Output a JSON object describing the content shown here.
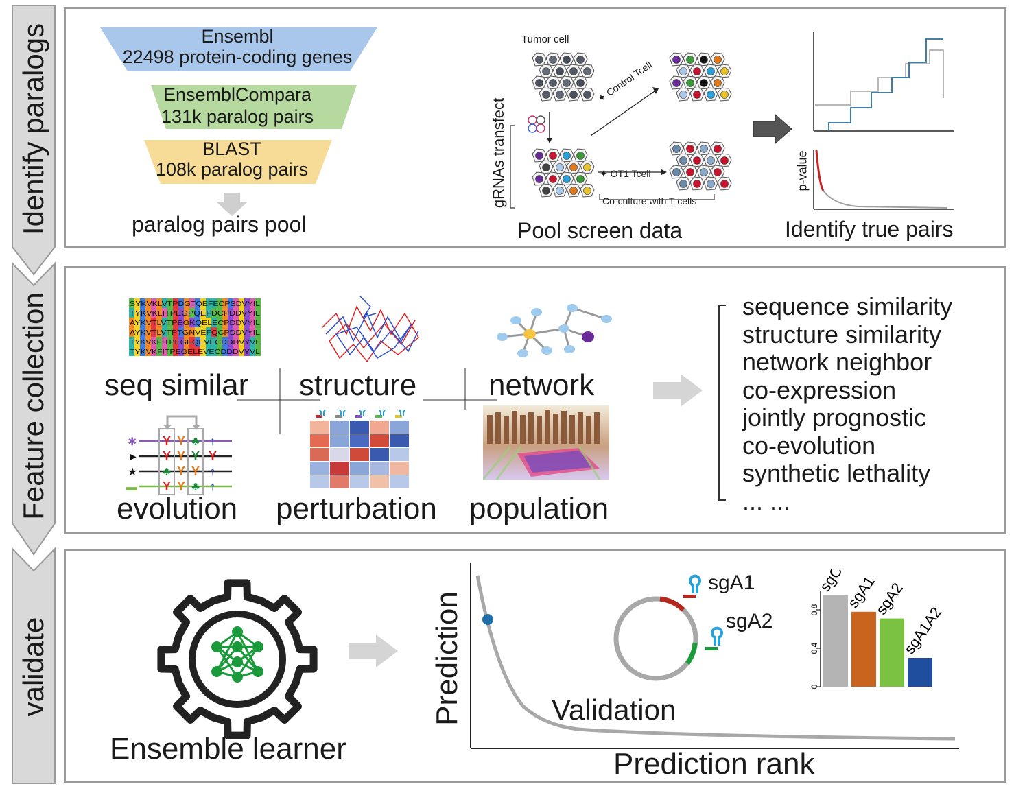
{
  "sidebar": {
    "step1": "Identify paralogs",
    "step2": "Feature collection",
    "step3": "validate"
  },
  "panel1": {
    "funnel": [
      {
        "line1": "Ensembl",
        "line2": "22498 protein-coding genes",
        "color": "#a8c7ea"
      },
      {
        "line1": "EnsemblCompara",
        "line2": "131k paralog pairs",
        "color": "#b6d9a0"
      },
      {
        "line1": "BLAST",
        "line2": "108k paralog pairs",
        "color": "#f7dc98"
      }
    ],
    "pool_label": "paralog pairs pool",
    "screen": {
      "tumor_cell": "Tumor cell",
      "gRNA_label": "gRNAs transfect",
      "control": "Control Tcell",
      "ot1": "OT1 Tcell",
      "coculture": "Co-culture with T cells",
      "caption": "Pool screen data"
    },
    "identify": {
      "pvalue": "p-value",
      "caption": "Identify true pairs"
    }
  },
  "panel2": {
    "seq_rows": [
      "SYKVKLVTPDGTQEFECPSDVYIL",
      "TYKVKLITPEGPQEFDCPDDVYIL",
      "AYKVTLVTPEGKQELECPDDVYIL",
      "AYKVTLVTPTGNVEFQCPDDVYIL",
      "TYKVKFITPEGEQEVECDDDVYVL",
      "TYKVKFITPEGELEVECDDDVYVL"
    ],
    "labels": {
      "seq": "seq similar",
      "structure": "structure",
      "network": "network",
      "evolution": "evolution",
      "perturbation": "perturbation",
      "population": "population"
    },
    "features": [
      "sequence similarity",
      "structure similarity",
      "network neighbor",
      "co-expression",
      "jointly prognostic",
      "co-evolution",
      "synthetic lethality",
      "... ..."
    ]
  },
  "panel3": {
    "ensemble": "Ensemble learner",
    "ylabel": "Prediction",
    "xlabel": "Prediction rank",
    "validation": "Validation",
    "sgA1": "sgA1",
    "sgA2": "sgA2",
    "chart_data": {
      "type": "bar",
      "categories": [
        "sgCtrl",
        "sgA1",
        "sgA2",
        "sgA1A2"
      ],
      "values": [
        0.95,
        0.78,
        0.71,
        0.3
      ],
      "colors": [
        "#b4b4b4",
        "#c8641e",
        "#7cc242",
        "#1f4e9e"
      ],
      "yticks": [
        "0",
        "0.4",
        "0.8"
      ],
      "ylim": [
        0,
        1.0
      ]
    }
  }
}
